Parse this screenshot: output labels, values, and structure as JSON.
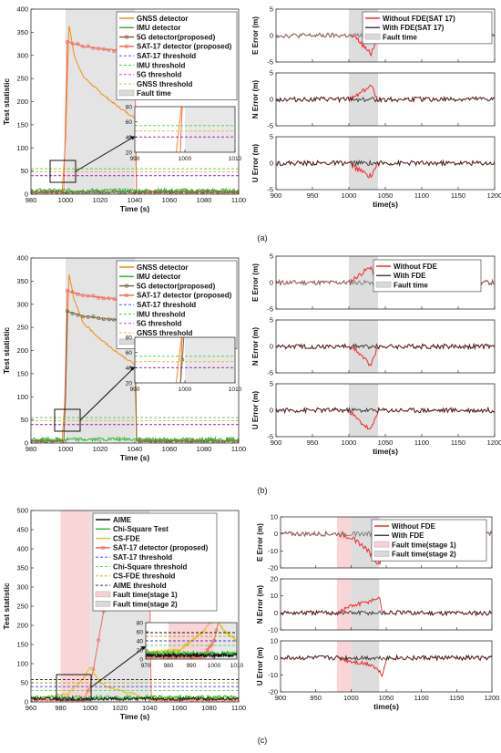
{
  "captions": [
    "(a)",
    "(b)",
    "(c)"
  ],
  "colors": {
    "gnss": "#f08c1e",
    "imu": "#2db82d",
    "det5g": "#7a6a3c",
    "sat17det": "#f06a5a",
    "sat17thr": "#3a3ad6",
    "imuthr": "#3fd03f",
    "thr5g": "#d02ea0",
    "gnssthr": "#e8b030",
    "faultgray": "#d9d9d9",
    "faultpink": "#f8d0d4",
    "without": "#ee2a2a",
    "withc": "#6e6e6e",
    "aime": "#111111",
    "chisq": "#2cc02c",
    "csfde": "#e0c020",
    "chisqthr": "#60d060",
    "csfdethr": "#c8a010",
    "aimethr": "#111111"
  },
  "chart_data": [
    {
      "id": "a-left",
      "type": "line",
      "xlabel": "Time (s)",
      "ylabel": "Test statistic",
      "xlim": [
        980,
        1100
      ],
      "ylim": [
        0,
        400
      ],
      "xticks": [
        980,
        1000,
        1020,
        1040,
        1060,
        1080,
        1100
      ],
      "yticks": [
        0,
        50,
        100,
        150,
        200,
        250,
        300,
        350,
        400
      ],
      "fault": [
        1000,
        1040
      ],
      "legend": [
        "GNSS detector",
        "IMU detector",
        "5G detector(proposed)",
        "SAT-17 detector (proposed)",
        "SAT-17 threshold",
        "IMU threshold",
        "5G threshold",
        "GNSS threshold",
        "Fault time"
      ],
      "series": [
        {
          "name": "GNSS detector",
          "x": [
            980,
            998,
            1000,
            1002,
            1005,
            1010,
            1020,
            1030,
            1040,
            1041,
            1100
          ],
          "y": [
            5,
            5,
            120,
            365,
            300,
            255,
            220,
            190,
            165,
            5,
            5
          ]
        },
        {
          "name": "SAT-17 detector (proposed)",
          "x": [
            980,
            999,
            1000,
            1001,
            1005,
            1010,
            1020,
            1030,
            1040,
            1041,
            1100
          ],
          "y": [
            5,
            5,
            170,
            330,
            325,
            320,
            315,
            310,
            306,
            5,
            5
          ]
        },
        {
          "name": "IMU detector",
          "x": [
            980,
            1100
          ],
          "y": [
            8,
            8
          ]
        },
        {
          "name": "5G detector(proposed)",
          "x": [
            980,
            1100
          ],
          "y": [
            4,
            4
          ]
        },
        {
          "name": "SAT-17 threshold",
          "x": [
            980,
            1100
          ],
          "y": [
            40,
            40
          ]
        },
        {
          "name": "IMU threshold",
          "x": [
            980,
            1100
          ],
          "y": [
            55,
            55
          ]
        },
        {
          "name": "5G threshold",
          "x": [
            980,
            1100
          ],
          "y": [
            40,
            40
          ]
        },
        {
          "name": "GNSS threshold",
          "x": [
            980,
            1100
          ],
          "y": [
            48,
            48
          ]
        }
      ],
      "inset": {
        "xlim": [
          990,
          1010
        ],
        "ylim": [
          20,
          80
        ],
        "xticks": [
          990,
          1000,
          1010
        ],
        "yticks": [
          20,
          40,
          60,
          80
        ]
      }
    },
    {
      "id": "a-right",
      "type": "line",
      "xlabel": "time(s)",
      "xlim": [
        900,
        1200
      ],
      "xticks": [
        900,
        950,
        1000,
        1050,
        1100,
        1150,
        1200
      ],
      "fault": [
        1000,
        1040
      ],
      "legend": [
        "Without FDE(SAT 17)",
        "With FDE(SAT 17)",
        "Fault time"
      ],
      "panels": [
        {
          "ylabel": "E Error (m)",
          "ylim": [
            -5,
            5
          ],
          "yticks": [
            -5,
            0,
            5
          ],
          "without_x": [
            900,
            1000,
            1010,
            1030,
            1040,
            1200
          ],
          "without_y": [
            0,
            0,
            -0.5,
            -3.5,
            0,
            0
          ]
        },
        {
          "ylabel": "N Error (m)",
          "ylim": [
            -5,
            5
          ],
          "yticks": [
            -5,
            0,
            5
          ],
          "without_x": [
            900,
            1000,
            1010,
            1030,
            1040,
            1200
          ],
          "without_y": [
            0,
            0,
            0.8,
            2.6,
            0,
            0
          ]
        },
        {
          "ylabel": "U Error (m)",
          "ylim": [
            -5,
            5
          ],
          "yticks": [
            -5,
            0,
            5
          ],
          "without_x": [
            900,
            1000,
            1010,
            1030,
            1040,
            1200
          ],
          "without_y": [
            0,
            0,
            -1,
            -2.5,
            0,
            0
          ]
        }
      ]
    },
    {
      "id": "b-left",
      "type": "line",
      "xlabel": "Time (s)",
      "ylabel": "Test statistic",
      "xlim": [
        980,
        1100
      ],
      "ylim": [
        0,
        400
      ],
      "xticks": [
        980,
        1000,
        1020,
        1040,
        1060,
        1080,
        1100
      ],
      "yticks": [
        0,
        50,
        100,
        150,
        200,
        250,
        300,
        350,
        400
      ],
      "fault": [
        1000,
        1040
      ],
      "legend": [
        "GNSS detector",
        "IMU detector",
        "5G detector(proposed)",
        "SAT-17 detector (proposed)",
        "SAT-17 threshold",
        "IMU threshold",
        "5G threshold",
        "GNSS threshold",
        "Fault time"
      ],
      "series": [
        {
          "name": "GNSS detector",
          "x": [
            980,
            998,
            1000,
            1002,
            1005,
            1010,
            1020,
            1030,
            1040,
            1041,
            1100
          ],
          "y": [
            5,
            5,
            120,
            365,
            310,
            260,
            225,
            195,
            170,
            5,
            5
          ]
        },
        {
          "name": "SAT-17 detector (proposed)",
          "x": [
            980,
            999,
            1000,
            1001,
            1005,
            1010,
            1020,
            1030,
            1040,
            1041,
            1100
          ],
          "y": [
            5,
            5,
            170,
            330,
            325,
            320,
            315,
            310,
            308,
            5,
            5
          ]
        },
        {
          "name": "5G detector(proposed)",
          "x": [
            980,
            999,
            1000,
            1001,
            1005,
            1010,
            1020,
            1030,
            1040,
            1041,
            1100
          ],
          "y": [
            4,
            4,
            100,
            285,
            280,
            275,
            270,
            265,
            262,
            4,
            4
          ]
        },
        {
          "name": "IMU detector",
          "x": [
            980,
            1100
          ],
          "y": [
            8,
            8
          ]
        },
        {
          "name": "SAT-17 threshold",
          "x": [
            980,
            1100
          ],
          "y": [
            40,
            40
          ]
        },
        {
          "name": "IMU threshold",
          "x": [
            980,
            1100
          ],
          "y": [
            55,
            55
          ]
        },
        {
          "name": "5G threshold",
          "x": [
            980,
            1100
          ],
          "y": [
            40,
            40
          ]
        },
        {
          "name": "GNSS threshold",
          "x": [
            980,
            1100
          ],
          "y": [
            48,
            48
          ]
        }
      ],
      "inset": {
        "xlim": [
          990,
          1010
        ],
        "ylim": [
          20,
          80
        ],
        "xticks": [
          990,
          1000,
          1010
        ],
        "yticks": [
          20,
          40,
          60,
          80
        ]
      }
    },
    {
      "id": "b-right",
      "type": "line",
      "xlabel": "time(s)",
      "xlim": [
        900,
        1200
      ],
      "xticks": [
        900,
        950,
        1000,
        1050,
        1100,
        1150,
        1200
      ],
      "fault": [
        1000,
        1040
      ],
      "legend": [
        "Without FDE",
        "With FDE",
        "Fault time"
      ],
      "panels": [
        {
          "ylabel": "E Error (m)",
          "ylim": [
            -5,
            5
          ],
          "yticks": [
            -5,
            0,
            5
          ],
          "without_x": [
            900,
            1000,
            1010,
            1030,
            1040,
            1200
          ],
          "without_y": [
            0,
            0,
            1,
            3,
            0,
            0
          ]
        },
        {
          "ylabel": "N Error (m)",
          "ylim": [
            -5,
            5
          ],
          "yticks": [
            -5,
            0,
            5
          ],
          "without_x": [
            900,
            1000,
            1010,
            1030,
            1040,
            1200
          ],
          "without_y": [
            0,
            0,
            -0.8,
            -3.5,
            0,
            0
          ]
        },
        {
          "ylabel": "U Error (m)",
          "ylim": [
            -5,
            5
          ],
          "yticks": [
            -5,
            0,
            5
          ],
          "without_x": [
            900,
            1000,
            1010,
            1030,
            1040,
            1200
          ],
          "without_y": [
            0,
            0,
            -1.5,
            -3.8,
            0,
            0
          ]
        }
      ]
    },
    {
      "id": "c-left",
      "type": "line",
      "xlabel": "Time (s)",
      "ylabel": "Test statistic",
      "xlim": [
        960,
        1100
      ],
      "ylim": [
        0,
        500
      ],
      "xticks": [
        960,
        980,
        1000,
        1020,
        1040,
        1060,
        1080,
        1100
      ],
      "yticks": [
        0,
        50,
        100,
        150,
        200,
        250,
        300,
        350,
        400,
        450,
        500
      ],
      "fault_stage1": [
        980,
        1000
      ],
      "fault_stage2": [
        1000,
        1040
      ],
      "legend": [
        "AIME",
        "Chi-Square Test",
        "CS-FDE",
        "SAT-17 detector (proposed)",
        "SAT-17 threshold",
        "Chi-Square threshold",
        "CS-FDE threshold",
        "AIME threshold",
        "Fault time(stage 1)",
        "Fault time(stage 2)"
      ],
      "series": [
        {
          "name": "SAT-17 detector (proposed)",
          "x": [
            960,
            995,
            1000,
            1005,
            1010,
            1020,
            1030,
            1040,
            1041,
            1100
          ],
          "y": [
            5,
            5,
            40,
            150,
            260,
            300,
            340,
            320,
            5,
            5
          ]
        },
        {
          "name": "CS-FDE",
          "x": [
            960,
            985,
            995,
            1000,
            1005,
            1010,
            1020,
            1030,
            1035,
            1100
          ],
          "y": [
            10,
            20,
            60,
            90,
            60,
            40,
            30,
            20,
            10,
            10
          ]
        },
        {
          "name": "Chi-Square Test",
          "x": [
            960,
            1100
          ],
          "y": [
            12,
            12
          ]
        },
        {
          "name": "AIME",
          "x": [
            960,
            1100
          ],
          "y": [
            8,
            8
          ]
        },
        {
          "name": "SAT-17 threshold",
          "x": [
            960,
            1100
          ],
          "y": [
            40,
            40
          ]
        },
        {
          "name": "Chi-Square threshold",
          "x": [
            960,
            1100
          ],
          "y": [
            30,
            30
          ]
        },
        {
          "name": "CS-FDE threshold",
          "x": [
            960,
            1100
          ],
          "y": [
            50,
            50
          ]
        },
        {
          "name": "AIME threshold",
          "x": [
            960,
            1100
          ],
          "y": [
            58,
            58
          ]
        }
      ],
      "inset": {
        "xlim": [
          970,
          1010
        ],
        "ylim": [
          0,
          80
        ],
        "xticks": [
          970,
          980,
          990,
          1000,
          1010
        ],
        "yticks": [
          0,
          20,
          40,
          60,
          80
        ]
      }
    },
    {
      "id": "c-right",
      "type": "line",
      "xlabel": "time(s)",
      "xlim": [
        900,
        1200
      ],
      "xticks": [
        900,
        950,
        1000,
        1050,
        1100,
        1150,
        1200
      ],
      "fault_stage1": [
        980,
        1000
      ],
      "fault_stage2": [
        1000,
        1040
      ],
      "legend": [
        "Without FDE",
        "With FDE",
        "Fault time(stage 1)",
        "Fault time(stage 2)"
      ],
      "panels": [
        {
          "ylabel": "E Error (m)",
          "ylim": [
            -20,
            10
          ],
          "yticks": [
            -20,
            -10,
            0,
            10
          ],
          "without_x": [
            900,
            980,
            1000,
            1020,
            1040,
            1045,
            1050,
            1200
          ],
          "without_y": [
            0,
            0,
            -2,
            -8,
            -18,
            -10,
            0,
            0
          ]
        },
        {
          "ylabel": "N Error (m)",
          "ylim": [
            -10,
            20
          ],
          "yticks": [
            -10,
            0,
            10,
            20
          ],
          "without_x": [
            900,
            980,
            1000,
            1020,
            1040,
            1045,
            1200
          ],
          "without_y": [
            0,
            0,
            4,
            6,
            9,
            0,
            0
          ]
        },
        {
          "ylabel": "U Error (m)",
          "ylim": [
            -20,
            10
          ],
          "yticks": [
            -20,
            -10,
            0,
            10
          ],
          "without_x": [
            900,
            980,
            1000,
            1030,
            1045,
            1050,
            1200
          ],
          "without_y": [
            0,
            0,
            -2,
            -4,
            -10,
            0,
            0
          ]
        }
      ]
    }
  ]
}
